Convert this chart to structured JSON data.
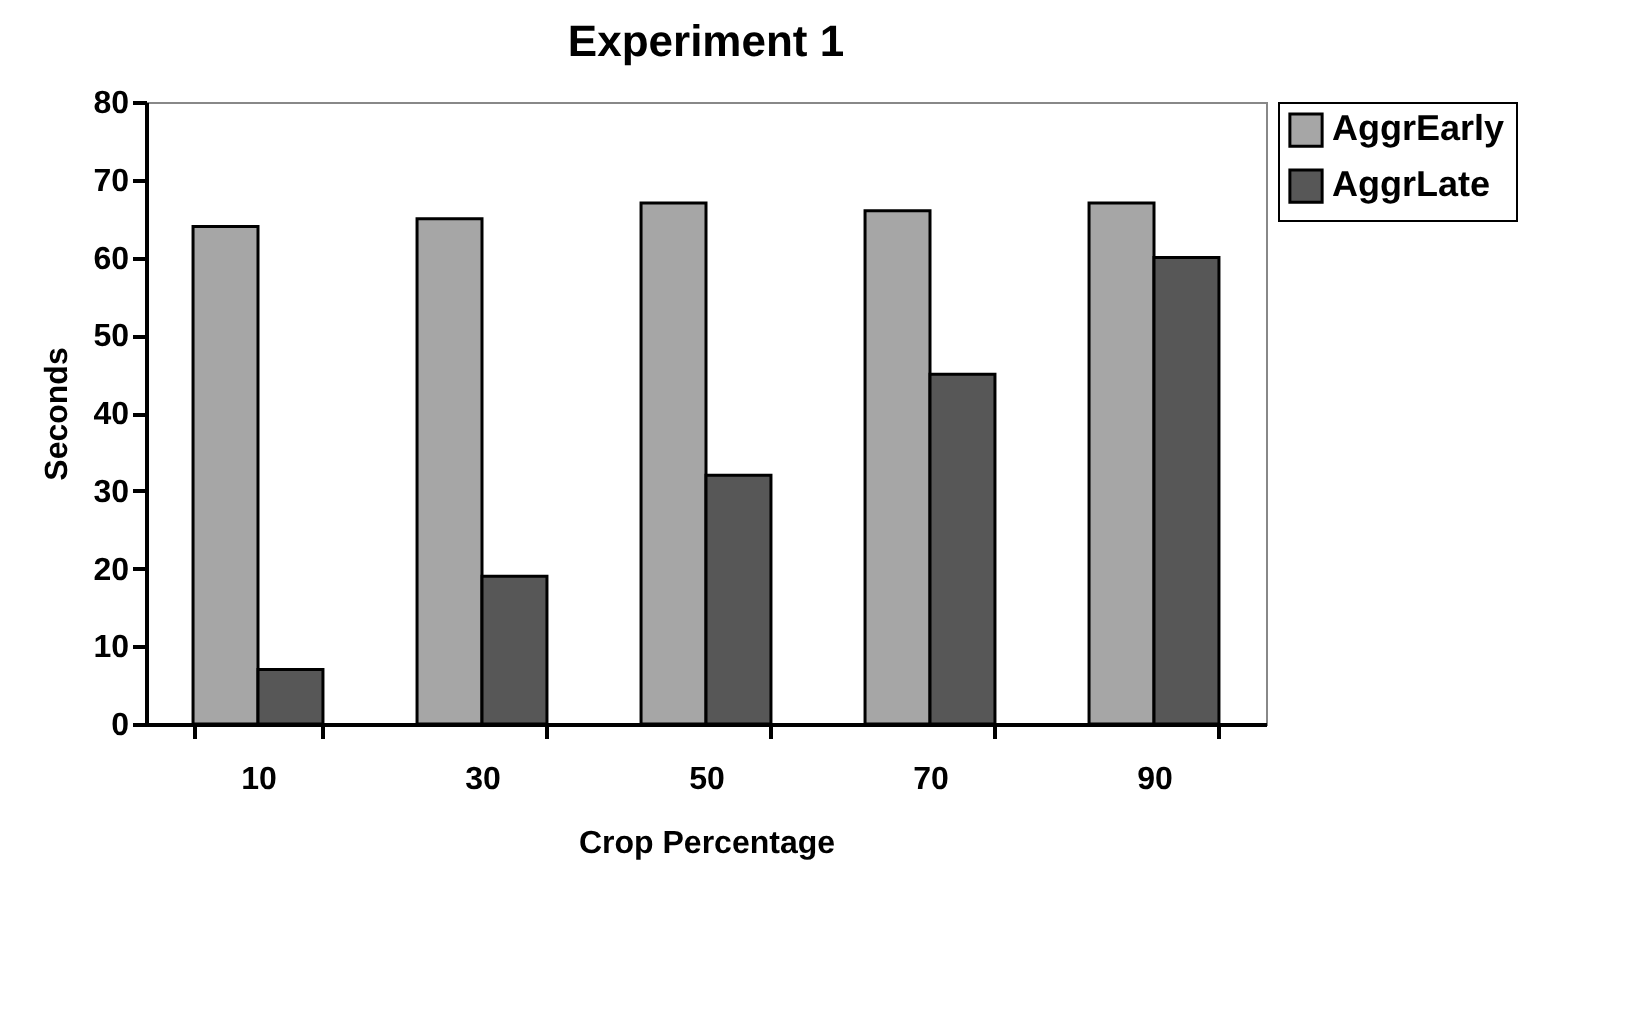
{
  "chart_data": {
    "type": "bar",
    "title": "Experiment 1",
    "xlabel": "Crop Percentage",
    "ylabel": "Seconds",
    "categories": [
      "10",
      "30",
      "50",
      "70",
      "90"
    ],
    "series": [
      {
        "name": "AggrEarly",
        "color": "#a6a6a6",
        "values": [
          64,
          65,
          67,
          66,
          67
        ]
      },
      {
        "name": "AggrLate",
        "color": "#575757",
        "values": [
          7,
          19,
          32,
          45,
          60
        ]
      }
    ],
    "ylim": [
      0,
      80
    ],
    "yticks": [
      0,
      10,
      20,
      30,
      40,
      50,
      60,
      70,
      80
    ],
    "grid": false,
    "legend": "top right"
  }
}
